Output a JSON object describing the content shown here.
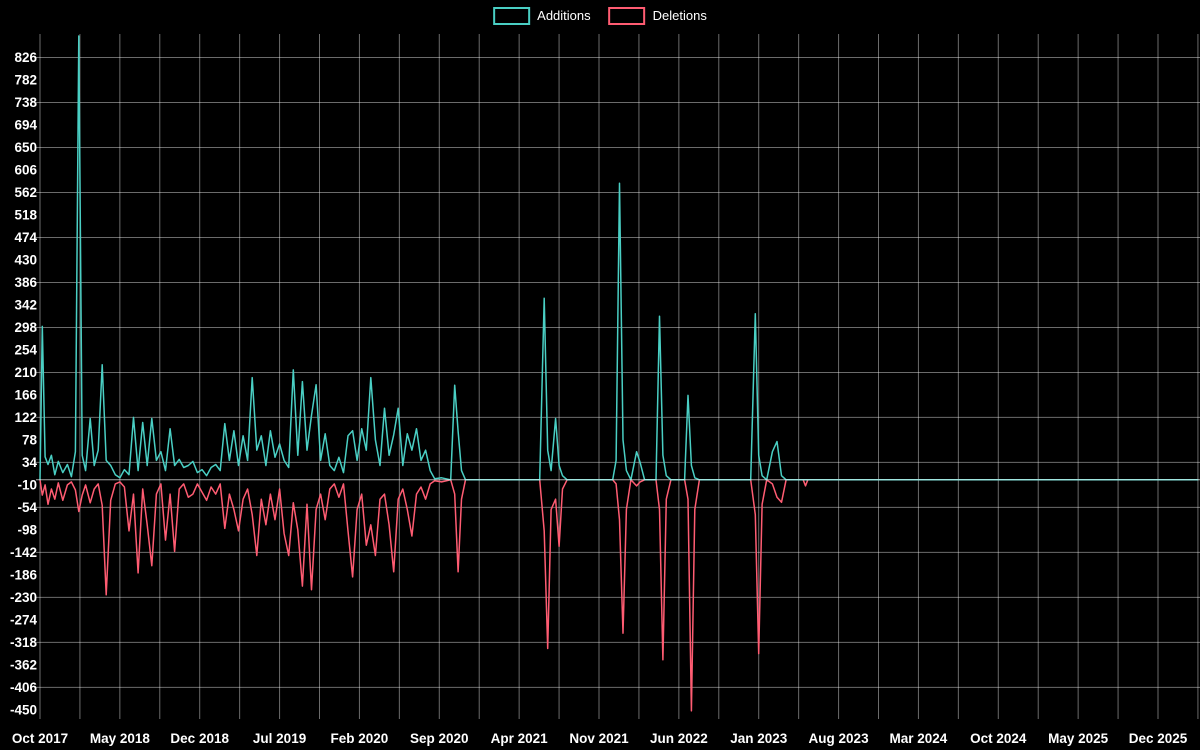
{
  "legend": {
    "additions_label": "Additions",
    "deletions_label": "Deletions"
  },
  "colors": {
    "additions": "#4acfc4",
    "deletions": "#ff5c72",
    "grid": "rgba(255,255,255,0.42)",
    "zero_line": "rgba(255,255,255,0.65)",
    "background": "#000000",
    "text": "#ffffff"
  },
  "chart_data": {
    "type": "line",
    "title": "",
    "xlabel": "",
    "ylabel": "",
    "legend_position": "top-center",
    "x_unit": "months since Oct 2017 (weekly samples)",
    "x_tick_positions": [
      0,
      7,
      14,
      21,
      28,
      35,
      42,
      49,
      56,
      63,
      70,
      77,
      84,
      91,
      98
    ],
    "x_tick_labels": [
      "Oct 2017",
      "May 2018",
      "Dec 2018",
      "Jul 2019",
      "Feb 2020",
      "Sep 2020",
      "Apr 2021",
      "Nov 2021",
      "Jun 2022",
      "Jan 2023",
      "Aug 2023",
      "Mar 2024",
      "Oct 2024",
      "May 2025",
      "Dec 2025"
    ],
    "y_ticks": [
      826,
      782,
      738,
      694,
      650,
      606,
      562,
      518,
      474,
      430,
      386,
      342,
      298,
      254,
      210,
      166,
      122,
      78,
      34,
      -10,
      -54,
      -98,
      -142,
      -186,
      -230,
      -274,
      -318,
      -362,
      -406,
      -450
    ],
    "ylim": [
      -462,
      872
    ],
    "xlim": [
      0,
      101.5
    ],
    "grid": {
      "x_step_months": 3.5,
      "y_step_values": 88,
      "y_grid_start": 826,
      "y_grid_end": -406,
      "on": true
    },
    "series_names": [
      "Additions",
      "Deletions"
    ],
    "weekly_points_format": [
      "month_offset",
      "additions",
      "deletions"
    ],
    "weekly_points": [
      [
        0.0,
        0,
        0
      ],
      [
        0.2,
        300,
        -30
      ],
      [
        0.45,
        45,
        -10
      ],
      [
        0.7,
        30,
        -48
      ],
      [
        1.0,
        48,
        -18
      ],
      [
        1.3,
        10,
        -38
      ],
      [
        1.6,
        36,
        -6
      ],
      [
        2.0,
        14,
        -40
      ],
      [
        2.4,
        30,
        -10
      ],
      [
        2.75,
        6,
        -4
      ],
      [
        3.1,
        55,
        -20
      ],
      [
        3.4,
        868,
        -62
      ],
      [
        3.7,
        48,
        -30
      ],
      [
        4.0,
        18,
        -10
      ],
      [
        4.4,
        120,
        -45
      ],
      [
        4.75,
        28,
        -18
      ],
      [
        5.1,
        58,
        -8
      ],
      [
        5.45,
        225,
        -50
      ],
      [
        5.8,
        38,
        -225
      ],
      [
        6.2,
        28,
        -40
      ],
      [
        6.6,
        10,
        -8
      ],
      [
        7.0,
        4,
        -4
      ],
      [
        7.4,
        20,
        -14
      ],
      [
        7.8,
        10,
        -100
      ],
      [
        8.2,
        122,
        -28
      ],
      [
        8.6,
        18,
        -182
      ],
      [
        9.0,
        112,
        -18
      ],
      [
        9.4,
        28,
        -88
      ],
      [
        9.8,
        120,
        -168
      ],
      [
        10.2,
        38,
        -28
      ],
      [
        10.6,
        55,
        -8
      ],
      [
        11.0,
        18,
        -118
      ],
      [
        11.4,
        100,
        -28
      ],
      [
        11.8,
        28,
        -140
      ],
      [
        12.2,
        40,
        -18
      ],
      [
        12.6,
        24,
        -8
      ],
      [
        13.0,
        28,
        -34
      ],
      [
        13.4,
        36,
        -28
      ],
      [
        13.8,
        14,
        -8
      ],
      [
        14.2,
        20,
        -24
      ],
      [
        14.6,
        8,
        -40
      ],
      [
        15.0,
        24,
        -14
      ],
      [
        15.4,
        30,
        -28
      ],
      [
        15.8,
        18,
        -8
      ],
      [
        16.2,
        110,
        -95
      ],
      [
        16.6,
        38,
        -28
      ],
      [
        17.0,
        96,
        -58
      ],
      [
        17.4,
        28,
        -100
      ],
      [
        17.8,
        86,
        -38
      ],
      [
        18.2,
        38,
        -18
      ],
      [
        18.6,
        200,
        -68
      ],
      [
        19.0,
        58,
        -148
      ],
      [
        19.4,
        86,
        -38
      ],
      [
        19.8,
        28,
        -88
      ],
      [
        20.2,
        96,
        -28
      ],
      [
        20.6,
        44,
        -78
      ],
      [
        21.0,
        70,
        -18
      ],
      [
        21.4,
        38,
        -105
      ],
      [
        21.8,
        24,
        -148
      ],
      [
        22.2,
        215,
        -45
      ],
      [
        22.6,
        48,
        -98
      ],
      [
        23.0,
        192,
        -208
      ],
      [
        23.4,
        58,
        -48
      ],
      [
        23.8,
        126,
        -215
      ],
      [
        24.2,
        186,
        -58
      ],
      [
        24.6,
        38,
        -28
      ],
      [
        25.0,
        90,
        -78
      ],
      [
        25.4,
        28,
        -18
      ],
      [
        25.8,
        18,
        -8
      ],
      [
        26.2,
        44,
        -34
      ],
      [
        26.6,
        14,
        -8
      ],
      [
        27.0,
        86,
        -100
      ],
      [
        27.4,
        96,
        -190
      ],
      [
        27.8,
        38,
        -58
      ],
      [
        28.2,
        100,
        -28
      ],
      [
        28.6,
        58,
        -128
      ],
      [
        29.0,
        200,
        -88
      ],
      [
        29.4,
        78,
        -148
      ],
      [
        29.8,
        28,
        -38
      ],
      [
        30.2,
        140,
        -28
      ],
      [
        30.6,
        48,
        -88
      ],
      [
        31.0,
        88,
        -180
      ],
      [
        31.4,
        140,
        -38
      ],
      [
        31.8,
        28,
        -18
      ],
      [
        32.2,
        90,
        -58
      ],
      [
        32.6,
        58,
        -110
      ],
      [
        33.0,
        100,
        -28
      ],
      [
        33.4,
        38,
        -14
      ],
      [
        33.8,
        58,
        -38
      ],
      [
        34.2,
        18,
        -8
      ],
      [
        34.6,
        2,
        -2
      ],
      [
        35.2,
        4,
        -4
      ],
      [
        36.0,
        0,
        0
      ],
      [
        36.35,
        185,
        -28
      ],
      [
        36.65,
        95,
        -180
      ],
      [
        36.95,
        18,
        -38
      ],
      [
        37.3,
        0,
        0
      ],
      [
        43.8,
        0,
        0
      ],
      [
        44.2,
        355,
        -100
      ],
      [
        44.5,
        58,
        -330
      ],
      [
        44.8,
        18,
        -58
      ],
      [
        45.2,
        120,
        -38
      ],
      [
        45.5,
        28,
        -130
      ],
      [
        45.8,
        8,
        -18
      ],
      [
        46.2,
        0,
        0
      ],
      [
        50.2,
        0,
        0
      ],
      [
        50.5,
        38,
        -8
      ],
      [
        50.8,
        580,
        -78
      ],
      [
        51.1,
        78,
        -300
      ],
      [
        51.4,
        18,
        -58
      ],
      [
        51.8,
        0,
        0
      ],
      [
        52.3,
        55,
        -12
      ],
      [
        52.6,
        34,
        -4
      ],
      [
        53.0,
        0,
        0
      ],
      [
        54.0,
        0,
        0
      ],
      [
        54.3,
        320,
        -58
      ],
      [
        54.6,
        48,
        -352
      ],
      [
        54.9,
        8,
        -38
      ],
      [
        55.3,
        0,
        0
      ],
      [
        56.5,
        0,
        0
      ],
      [
        56.8,
        165,
        -38
      ],
      [
        57.1,
        28,
        -452
      ],
      [
        57.4,
        4,
        -58
      ],
      [
        57.8,
        0,
        0
      ],
      [
        62.3,
        0,
        0
      ],
      [
        62.7,
        325,
        -68
      ],
      [
        63.0,
        48,
        -340
      ],
      [
        63.3,
        8,
        -48
      ],
      [
        63.7,
        0,
        0
      ],
      [
        64.2,
        55,
        -8
      ],
      [
        64.6,
        75,
        -34
      ],
      [
        65.0,
        8,
        -44
      ],
      [
        65.4,
        0,
        0
      ],
      [
        66.9,
        0,
        0
      ],
      [
        67.1,
        0,
        -12
      ],
      [
        67.3,
        0,
        0
      ],
      [
        98.0,
        0,
        0
      ],
      [
        101.5,
        0,
        0
      ]
    ]
  }
}
